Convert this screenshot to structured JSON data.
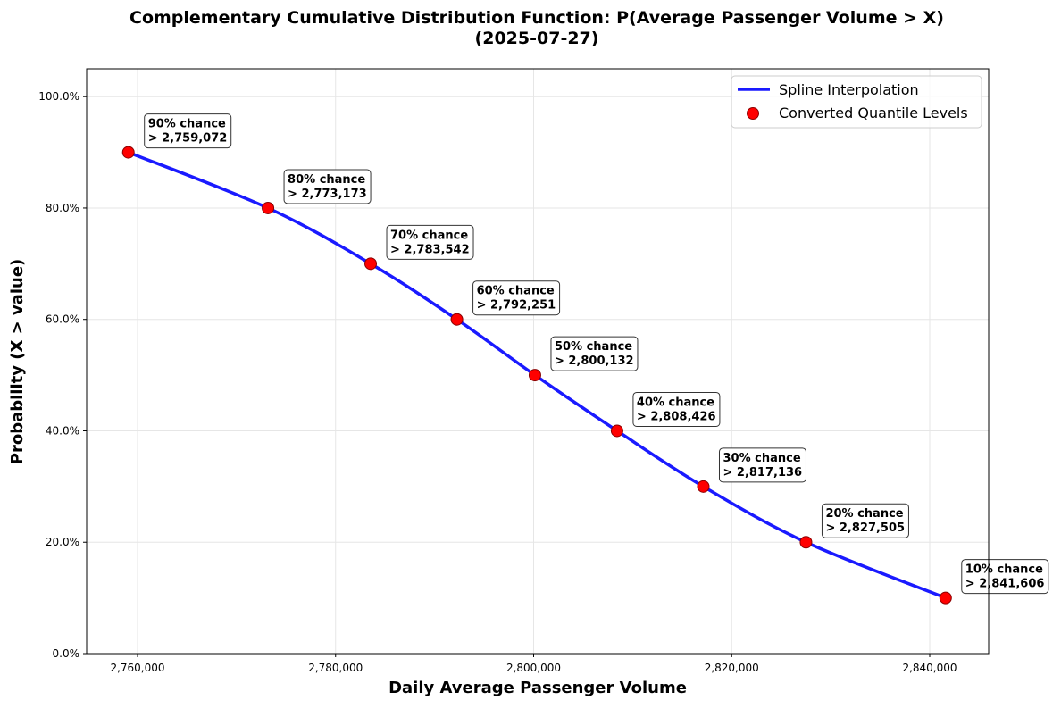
{
  "chart_data": {
    "type": "line",
    "title": "Complementary Cumulative Distribution Function: P(Average Passenger Volume > X)",
    "subtitle": "(2025-07-27)",
    "xlabel": "Daily Average Passenger Volume",
    "ylabel": "Probability (X > value)",
    "xlim": [
      2754859,
      2845953
    ],
    "ylim": [
      0,
      105
    ],
    "grid": true,
    "legend_position": "top-right",
    "x_ticks": [
      2760000,
      2780000,
      2800000,
      2820000,
      2840000
    ],
    "x_tick_labels": [
      "2,760,000",
      "2,780,000",
      "2,800,000",
      "2,820,000",
      "2,840,000"
    ],
    "y_ticks": [
      0,
      20,
      40,
      60,
      80,
      100
    ],
    "y_tick_labels": [
      "0.0%",
      "20.0%",
      "40.0%",
      "60.0%",
      "80.0%",
      "100.0%"
    ],
    "series": [
      {
        "name": "Spline Interpolation",
        "kind": "line",
        "color": "#1a1aff"
      },
      {
        "name": "Converted Quantile Levels",
        "kind": "scatter",
        "color": "#ff0000",
        "edge_color": "#8b0000"
      }
    ],
    "points": [
      {
        "x": 2759072,
        "y": 90,
        "label1": "90% chance",
        "label2": "> 2,759,072"
      },
      {
        "x": 2773173,
        "y": 80,
        "label1": "80% chance",
        "label2": "> 2,773,173"
      },
      {
        "x": 2783542,
        "y": 70,
        "label1": "70% chance",
        "label2": "> 2,783,542"
      },
      {
        "x": 2792251,
        "y": 60,
        "label1": "60% chance",
        "label2": "> 2,792,251"
      },
      {
        "x": 2800132,
        "y": 50,
        "label1": "50% chance",
        "label2": "> 2,800,132"
      },
      {
        "x": 2808426,
        "y": 40,
        "label1": "40% chance",
        "label2": "> 2,808,426"
      },
      {
        "x": 2817136,
        "y": 30,
        "label1": "30% chance",
        "label2": "> 2,817,136"
      },
      {
        "x": 2827505,
        "y": 20,
        "label1": "20% chance",
        "label2": "> 2,827,505"
      },
      {
        "x": 2841606,
        "y": 10,
        "label1": "10% chance",
        "label2": "> 2,841,606"
      }
    ]
  }
}
